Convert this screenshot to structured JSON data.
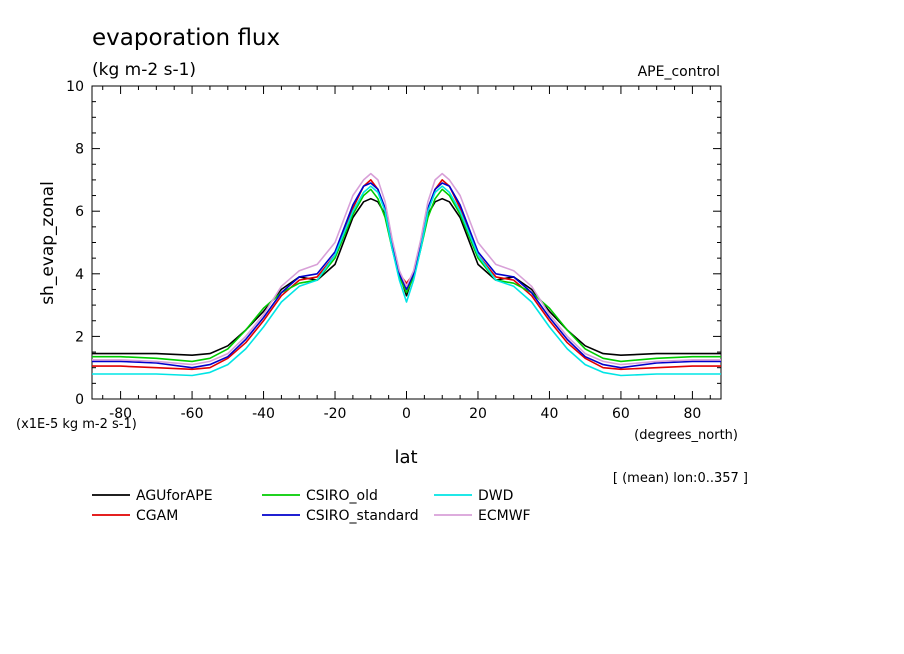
{
  "chart_data": {
    "type": "line",
    "title": "evaporation flux",
    "subtitle": "(kg m-2 s-1)",
    "dataset_label": "APE_control",
    "ylabel": "sh_evap_zonal",
    "xlabel": "lat",
    "x_units": "(degrees_north)",
    "y_scale_note": "(x1E-5 kg m-2 s-1)",
    "averaging_note": "[ (mean) lon:0..357 ]",
    "xlim": [
      -88,
      88
    ],
    "ylim": [
      0,
      10
    ],
    "x_ticks": [
      -80,
      -60,
      -40,
      -20,
      0,
      20,
      40,
      60,
      80
    ],
    "x_tick_labels": [
      "-80",
      "-60",
      "-40",
      "-20",
      "0",
      "20",
      "40",
      "60",
      "80"
    ],
    "y_ticks": [
      0,
      2,
      4,
      6,
      8,
      10
    ],
    "y_tick_labels": [
      "0",
      "2",
      "4",
      "6",
      "8",
      "10"
    ],
    "grid": false,
    "legend_position": "below",
    "x": [
      -88,
      -80,
      -70,
      -60,
      -55,
      -50,
      -45,
      -40,
      -35,
      -30,
      -25,
      -20,
      -15,
      -12,
      -10,
      -8,
      -6,
      -4,
      -2,
      0,
      2,
      4,
      6,
      8,
      10,
      12,
      15,
      20,
      25,
      30,
      35,
      40,
      45,
      50,
      55,
      60,
      70,
      80,
      88
    ],
    "series": [
      {
        "name": "AGUforAPE",
        "color": "#000000",
        "values": [
          1.45,
          1.45,
          1.45,
          1.4,
          1.45,
          1.7,
          2.2,
          2.8,
          3.5,
          3.9,
          3.8,
          4.3,
          5.8,
          6.3,
          6.4,
          6.3,
          5.9,
          5.0,
          4.0,
          3.3,
          4.0,
          5.0,
          5.9,
          6.3,
          6.4,
          6.3,
          5.8,
          4.3,
          3.8,
          3.9,
          3.5,
          2.8,
          2.2,
          1.7,
          1.45,
          1.4,
          1.45,
          1.45,
          1.45
        ]
      },
      {
        "name": "CGAM",
        "color": "#e00000",
        "values": [
          1.05,
          1.05,
          1.0,
          0.95,
          1.0,
          1.3,
          1.8,
          2.5,
          3.3,
          3.8,
          3.9,
          4.6,
          6.1,
          6.8,
          7.0,
          6.7,
          6.0,
          4.9,
          4.0,
          3.7,
          4.0,
          4.9,
          6.0,
          6.7,
          7.0,
          6.8,
          6.1,
          4.6,
          3.9,
          3.8,
          3.3,
          2.5,
          1.8,
          1.3,
          1.0,
          0.95,
          1.0,
          1.05,
          1.05
        ]
      },
      {
        "name": "CSIRO_old",
        "color": "#00cc00",
        "values": [
          1.35,
          1.35,
          1.3,
          1.2,
          1.3,
          1.6,
          2.2,
          2.9,
          3.4,
          3.7,
          3.8,
          4.5,
          5.9,
          6.5,
          6.7,
          6.4,
          5.8,
          4.8,
          3.9,
          3.4,
          3.9,
          4.8,
          5.8,
          6.4,
          6.7,
          6.5,
          5.9,
          4.5,
          3.8,
          3.7,
          3.4,
          2.9,
          2.2,
          1.6,
          1.3,
          1.2,
          1.3,
          1.35,
          1.35
        ]
      },
      {
        "name": "CSIRO_standard",
        "color": "#0000cc",
        "values": [
          1.2,
          1.2,
          1.15,
          1.0,
          1.1,
          1.35,
          1.9,
          2.6,
          3.4,
          3.9,
          4.0,
          4.7,
          6.2,
          6.8,
          6.9,
          6.7,
          6.1,
          5.0,
          4.0,
          3.5,
          4.0,
          5.0,
          6.1,
          6.7,
          6.9,
          6.8,
          6.2,
          4.7,
          4.0,
          3.9,
          3.4,
          2.6,
          1.9,
          1.35,
          1.1,
          1.0,
          1.15,
          1.2,
          1.2
        ]
      },
      {
        "name": "DWD",
        "color": "#00e5e5",
        "values": [
          0.8,
          0.8,
          0.8,
          0.75,
          0.85,
          1.1,
          1.6,
          2.3,
          3.1,
          3.6,
          3.8,
          4.6,
          6.0,
          6.6,
          6.8,
          6.6,
          6.0,
          4.8,
          3.8,
          3.1,
          3.8,
          4.8,
          6.0,
          6.6,
          6.8,
          6.6,
          6.0,
          4.6,
          3.8,
          3.6,
          3.1,
          2.3,
          1.6,
          1.1,
          0.85,
          0.75,
          0.8,
          0.8,
          0.8
        ]
      },
      {
        "name": "ECMWF",
        "color": "#d8a0d8",
        "values": [
          1.25,
          1.25,
          1.2,
          1.1,
          1.2,
          1.45,
          2.0,
          2.7,
          3.6,
          4.1,
          4.3,
          5.0,
          6.5,
          7.0,
          7.2,
          7.0,
          6.3,
          5.1,
          4.1,
          3.6,
          4.1,
          5.1,
          6.3,
          7.0,
          7.2,
          7.0,
          6.5,
          5.0,
          4.3,
          4.1,
          3.6,
          2.7,
          2.0,
          1.45,
          1.2,
          1.1,
          1.2,
          1.25,
          1.25
        ]
      }
    ]
  }
}
